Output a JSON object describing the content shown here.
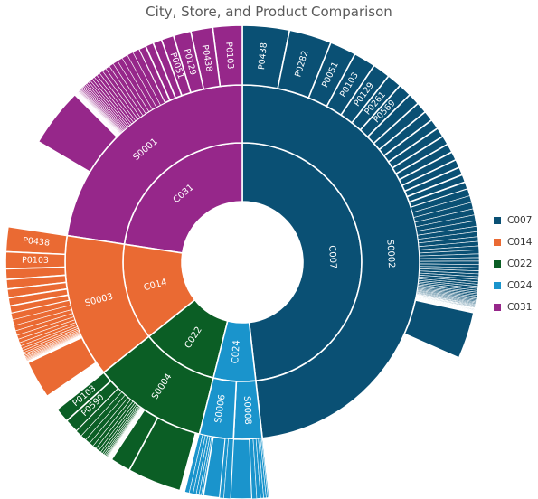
{
  "chart_data": {
    "type": "sunburst",
    "title": "City, Store, and Product Comparison",
    "legend_position": "right",
    "cities": [
      {
        "name": "C007",
        "color": "#0a5074",
        "value": 48.2,
        "stores": [
          {
            "name": "S0002",
            "value": 48.2,
            "products": [
              {
                "name": "P0438",
                "value": 3.2
              },
              {
                "name": "P0282",
                "value": 2.9
              },
              {
                "name": "P0051",
                "value": 1.8
              },
              {
                "name": "P0103",
                "value": 1.5
              },
              {
                "name": "P0129",
                "value": 1.2
              },
              {
                "name": "P0261",
                "value": 1.0
              },
              {
                "name": "P0569",
                "value": 0.9
              },
              {
                "name": "",
                "value": 0.8
              },
              {
                "name": "",
                "value": 0.75
              },
              {
                "name": "",
                "value": 0.7
              },
              {
                "name": "",
                "value": 0.68
              },
              {
                "name": "",
                "value": 0.65
              },
              {
                "name": "",
                "value": 0.62
              },
              {
                "name": "",
                "value": 0.6
              },
              {
                "name": "",
                "value": 0.58
              },
              {
                "name": "",
                "value": 0.56
              },
              {
                "name": "",
                "value": 0.54
              },
              {
                "name": "",
                "value": 0.52
              },
              {
                "name": "",
                "value": 0.5
              },
              {
                "name": "",
                "value": 0.48
              },
              {
                "name": "",
                "value": 0.46
              },
              {
                "name": "",
                "value": 0.44
              },
              {
                "name": "",
                "value": 0.42
              },
              {
                "name": "",
                "value": 0.4
              },
              {
                "name": "",
                "value": 0.38
              },
              {
                "name": "",
                "value": 0.36
              },
              {
                "name": "",
                "value": 0.34
              },
              {
                "name": "",
                "value": 0.32
              },
              {
                "name": "",
                "value": 0.3
              },
              {
                "name": "",
                "value": 0.28
              },
              {
                "name": "",
                "value": 0.26
              },
              {
                "name": "",
                "value": 0.25
              },
              {
                "name": "",
                "value": 0.24
              },
              {
                "name": "",
                "value": 0.23
              },
              {
                "name": "",
                "value": 0.22
              },
              {
                "name": "",
                "value": 0.21
              },
              {
                "name": "",
                "value": 0.2
              },
              {
                "name": "",
                "value": 0.19
              },
              {
                "name": "",
                "value": 0.18
              },
              {
                "name": "",
                "value": 0.17
              },
              {
                "name": "",
                "value": 0.16
              },
              {
                "name": "",
                "value": 0.15
              },
              {
                "name": "",
                "value": 0.14
              },
              {
                "name": "",
                "value": 0.13
              },
              {
                "name": "",
                "value": 0.12
              },
              {
                "name": "",
                "value": 0.11
              },
              {
                "name": "",
                "value": 0.1
              },
              {
                "name": "",
                "value": 0.1
              },
              {
                "name": "",
                "value": 0.09
              },
              {
                "name": "",
                "value": 0.09
              },
              {
                "name": "",
                "value": 0.08
              },
              {
                "name": "",
                "value": 0.08
              },
              {
                "name": "",
                "value": 0.07
              },
              {
                "name": "",
                "value": 0.07
              },
              {
                "name": "",
                "value": 0.06
              },
              {
                "name": "",
                "value": 0.06
              },
              {
                "name": "",
                "value": 0.05
              },
              {
                "name": "",
                "value": 0.05
              },
              {
                "name": "",
                "value": 0.05
              },
              {
                "name": "",
                "value": 0.04
              },
              {
                "name": "",
                "value": 0.04
              },
              {
                "name": "",
                "value": 0.04
              },
              {
                "name": "",
                "value": 0.04
              },
              {
                "name": "",
                "value": 0.03
              },
              {
                "name": "",
                "value": 0.03
              },
              {
                "name": "",
                "value": 0.03
              },
              {
                "name": "",
                "value": 0.03
              },
              {
                "name": "",
                "value": 0.03
              },
              {
                "name": "",
                "value": 0.03
              },
              {
                "name": "",
                "value": 3.2
              }
            ]
          }
        ]
      },
      {
        "name": "C031",
        "color": "#96278a",
        "value": 22.6,
        "stores": [
          {
            "name": "S0001",
            "value": 22.6,
            "products": [
              {
                "name": "P0103",
                "value": 2.0
              },
              {
                "name": "P0438",
                "value": 1.5
              },
              {
                "name": "P0129",
                "value": 1.2
              },
              {
                "name": "P0051",
                "value": 0.85
              },
              {
                "name": "",
                "value": 0.6
              },
              {
                "name": "",
                "value": 0.55
              },
              {
                "name": "",
                "value": 0.5
              },
              {
                "name": "",
                "value": 0.45
              },
              {
                "name": "",
                "value": 0.42
              },
              {
                "name": "",
                "value": 0.4
              },
              {
                "name": "",
                "value": 0.37
              },
              {
                "name": "",
                "value": 0.34
              },
              {
                "name": "",
                "value": 0.31
              },
              {
                "name": "",
                "value": 0.29
              },
              {
                "name": "",
                "value": 0.27
              },
              {
                "name": "",
                "value": 0.25
              },
              {
                "name": "",
                "value": 0.23
              },
              {
                "name": "",
                "value": 0.21
              },
              {
                "name": "",
                "value": 0.19
              },
              {
                "name": "",
                "value": 0.17
              },
              {
                "name": "",
                "value": 0.15
              },
              {
                "name": "",
                "value": 0.14
              },
              {
                "name": "",
                "value": 0.12
              },
              {
                "name": "",
                "value": 0.11
              },
              {
                "name": "",
                "value": 0.1
              },
              {
                "name": "",
                "value": 0.09
              },
              {
                "name": "",
                "value": 0.08
              },
              {
                "name": "",
                "value": 0.07
              },
              {
                "name": "",
                "value": 0.06
              },
              {
                "name": "",
                "value": 0.06
              },
              {
                "name": "",
                "value": 0.05
              },
              {
                "name": "",
                "value": 0.05
              },
              {
                "name": "",
                "value": 0.04
              },
              {
                "name": "",
                "value": 0.04
              },
              {
                "name": "",
                "value": 0.03
              },
              {
                "name": "",
                "value": 0.03
              },
              {
                "name": "",
                "value": 0.03
              },
              {
                "name": "",
                "value": 0.03
              },
              {
                "name": "",
                "value": 0.03
              },
              {
                "name": "",
                "value": 0.03
              },
              {
                "name": "",
                "value": 0.03
              },
              {
                "name": "",
                "value": 0.03
              },
              {
                "name": "",
                "value": 4.0
              }
            ]
          }
        ]
      },
      {
        "name": "C014",
        "color": "#ea6a33",
        "value": 13.1,
        "stores": [
          {
            "name": "S0003",
            "value": 13.1,
            "products": [
              {
                "name": "P0438",
                "value": 1.7
              },
              {
                "name": "P0103",
                "value": 1.15
              },
              {
                "name": "",
                "value": 0.72
              },
              {
                "name": "",
                "value": 0.65
              },
              {
                "name": "",
                "value": 0.6
              },
              {
                "name": "",
                "value": 0.55
              },
              {
                "name": "",
                "value": 0.5
              },
              {
                "name": "",
                "value": 0.45
              },
              {
                "name": "",
                "value": 0.4
              },
              {
                "name": "",
                "value": 0.36
              },
              {
                "name": "",
                "value": 0.32
              },
              {
                "name": "",
                "value": 0.28
              },
              {
                "name": "",
                "value": 0.25
              },
              {
                "name": "",
                "value": 0.22
              },
              {
                "name": "",
                "value": 0.19
              },
              {
                "name": "",
                "value": 0.16
              },
              {
                "name": "",
                "value": 0.14
              },
              {
                "name": "",
                "value": 0.12
              },
              {
                "name": "",
                "value": 0.1
              },
              {
                "name": "",
                "value": 0.09
              },
              {
                "name": "",
                "value": 0.08
              },
              {
                "name": "",
                "value": 0.07
              },
              {
                "name": "",
                "value": 0.06
              },
              {
                "name": "",
                "value": 0.05
              },
              {
                "name": "",
                "value": 0.05
              },
              {
                "name": "",
                "value": 0.04
              },
              {
                "name": "",
                "value": 0.04
              },
              {
                "name": "",
                "value": 0.04
              },
              {
                "name": "",
                "value": 2.6
              }
            ]
          }
        ]
      },
      {
        "name": "C022",
        "color": "#0b5e25",
        "value": 10.4,
        "stores": [
          {
            "name": "S0004",
            "value": 10.4,
            "products": [
              {
                "name": "P0103",
                "value": 1.0
              },
              {
                "name": "P0590",
                "value": 0.95
              },
              {
                "name": "",
                "value": 0.45
              },
              {
                "name": "",
                "value": 0.4
              },
              {
                "name": "",
                "value": 0.35
              },
              {
                "name": "",
                "value": 0.3
              },
              {
                "name": "",
                "value": 0.26
              },
              {
                "name": "",
                "value": 0.22
              },
              {
                "name": "",
                "value": 0.18
              },
              {
                "name": "",
                "value": 0.15
              },
              {
                "name": "",
                "value": 0.12
              },
              {
                "name": "",
                "value": 0.1
              },
              {
                "name": "",
                "value": 0.08
              },
              {
                "name": "",
                "value": 0.06
              },
              {
                "name": "",
                "value": 0.05
              },
              {
                "name": "",
                "value": 0.04
              },
              {
                "name": "",
                "value": 0.03
              },
              {
                "name": "",
                "value": 0.03
              },
              {
                "name": "",
                "value": 0.03
              },
              {
                "name": "",
                "value": 0.03
              },
              {
                "name": "",
                "value": 0.03
              },
              {
                "name": "",
                "value": 0.03
              },
              {
                "name": "",
                "value": 0.03
              },
              {
                "name": "",
                "value": 0.03
              },
              {
                "name": "",
                "value": 0.03
              },
              {
                "name": "",
                "value": 1.4
              },
              {
                "name": "",
                "value": 3.68
              }
            ]
          }
        ]
      },
      {
        "name": "C024",
        "color": "#1a94cc",
        "value": 5.7,
        "stores": [
          {
            "name": "S0008",
            "value": 2.6,
            "products": [
              {
                "name": "",
                "value": 1.45
              },
              {
                "name": "",
                "value": 0.32
              },
              {
                "name": "",
                "value": 0.26
              },
              {
                "name": "",
                "value": 0.21
              },
              {
                "name": "",
                "value": 0.17
              },
              {
                "name": "",
                "value": 0.12
              },
              {
                "name": "",
                "value": 0.07
              }
            ]
          },
          {
            "name": "S0006",
            "value": 3.1,
            "products": [
              {
                "name": "",
                "value": 0.3
              },
              {
                "name": "",
                "value": 0.26
              },
              {
                "name": "",
                "value": 0.22
              },
              {
                "name": "",
                "value": 0.19
              },
              {
                "name": "",
                "value": 0.16
              },
              {
                "name": "",
                "value": 0.14
              },
              {
                "name": "",
                "value": 1.1
              },
              {
                "name": "",
                "value": 0.28
              },
              {
                "name": "",
                "value": 0.45
              }
            ]
          }
        ]
      }
    ]
  },
  "legend": [
    {
      "label": "C007",
      "color": "#0a5074"
    },
    {
      "label": "C014",
      "color": "#ea6a33"
    },
    {
      "label": "C022",
      "color": "#0b5e25"
    },
    {
      "label": "C024",
      "color": "#1a94cc"
    },
    {
      "label": "C031",
      "color": "#96278a"
    }
  ]
}
